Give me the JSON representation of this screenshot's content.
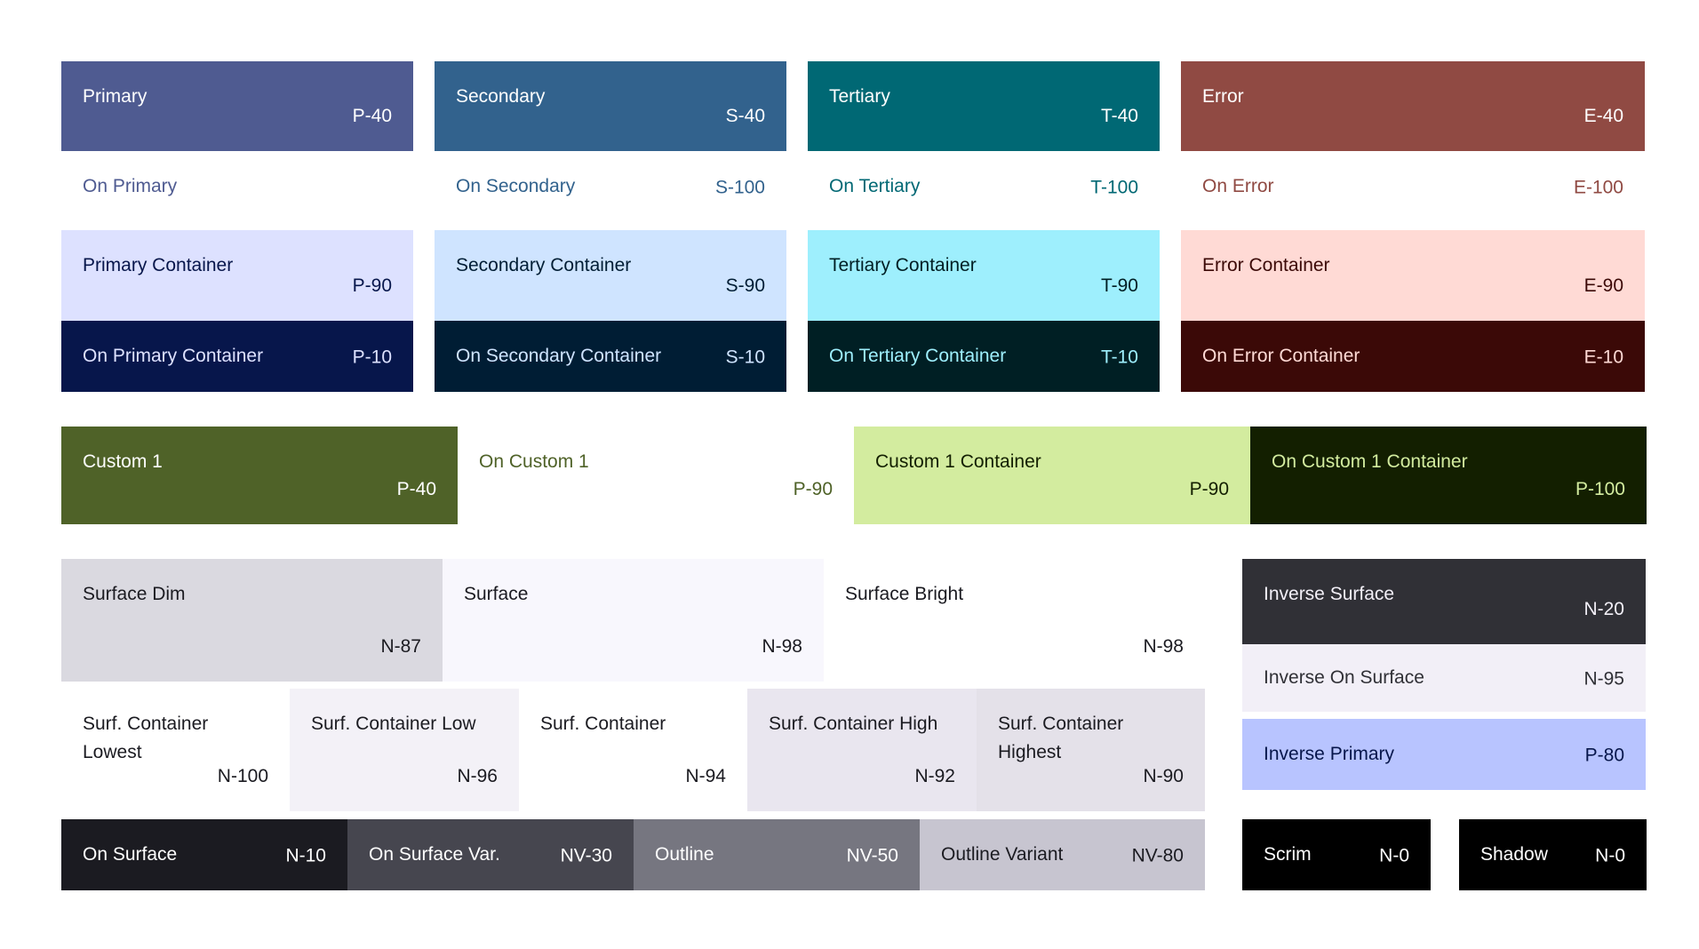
{
  "tiles": {
    "primary": {
      "name": "Primary",
      "code": "P-40",
      "bg": "#4F5B91",
      "fg": "#FFFFFF"
    },
    "secondary": {
      "name": "Secondary",
      "code": "S-40",
      "bg": "#32628D",
      "fg": "#FFFFFF"
    },
    "tertiary": {
      "name": "Tertiary",
      "code": "T-40",
      "bg": "#006874",
      "fg": "#FFFFFF"
    },
    "error": {
      "name": "Error",
      "code": "E-40",
      "bg": "#904A43",
      "fg": "#FFFFFF"
    },
    "on_primary": {
      "name": "On Primary",
      "code": "",
      "bg": "#FFFFFF",
      "fg": "#4F5B91"
    },
    "on_secondary": {
      "name": "On Secondary",
      "code": "S-100",
      "bg": "#FFFFFF",
      "fg": "#32628D"
    },
    "on_tertiary": {
      "name": "On Tertiary",
      "code": "T-100",
      "bg": "#FFFFFF",
      "fg": "#006874"
    },
    "on_error": {
      "name": "On Error",
      "code": "E-100",
      "bg": "#FFFFFF",
      "fg": "#904A43"
    },
    "primary_container": {
      "name": "Primary Container",
      "code": "P-90",
      "bg": "#DDE1FF",
      "fg": "#07164B"
    },
    "secondary_container": {
      "name": "Secondary Container",
      "code": "S-90",
      "bg": "#CFE4FF",
      "fg": "#001D34"
    },
    "tertiary_container": {
      "name": "Tertiary Container",
      "code": "T-90",
      "bg": "#9EEFFD",
      "fg": "#001F24"
    },
    "error_container": {
      "name": "Error Container",
      "code": "E-90",
      "bg": "#FFDAD5",
      "fg": "#3B0907"
    },
    "on_primary_container": {
      "name": "On Primary Container",
      "code": "P-10",
      "bg": "#07164B",
      "fg": "#DDE1FF"
    },
    "on_secondary_container": {
      "name": "On Secondary Container",
      "code": "S-10",
      "bg": "#001D34",
      "fg": "#CFE4FF"
    },
    "on_tertiary_container": {
      "name": "On Tertiary Container",
      "code": "T-10",
      "bg": "#001F24",
      "fg": "#9EEFFD"
    },
    "on_error_container": {
      "name": "On Error Container",
      "code": "E-10",
      "bg": "#3B0907",
      "fg": "#FFDAD5"
    },
    "custom1": {
      "name": "Custom 1",
      "code": "P-40",
      "bg": "#4F6228",
      "fg": "#FFFFFF"
    },
    "on_custom1": {
      "name": "On Custom 1",
      "code": "P-90",
      "bg": "#FFFFFF",
      "fg": "#4F6228"
    },
    "custom1_container": {
      "name": "Custom 1 Container",
      "code": "P-90",
      "bg": "#D3EC9F",
      "fg": "#131F00"
    },
    "on_custom1_container": {
      "name": "On Custom 1 Container",
      "code": "P-100",
      "bg": "#131F00",
      "fg": "#D3EC9F"
    },
    "surface_dim": {
      "name": "Surface Dim",
      "code": "N-87",
      "bg": "#DAD9E0",
      "fg": "#1B1B21"
    },
    "surface": {
      "name": "Surface",
      "code": "N-98",
      "bg": "#F8F7FD",
      "fg": "#1B1B21"
    },
    "surface_bright": {
      "name": "Surface Bright",
      "code": "N-98",
      "bg": "#FFFFFF",
      "fg": "#1B1B21"
    },
    "surf_container_lowest": {
      "name": "Surf. Container\nLowest",
      "code": "N-100",
      "bg": "#FFFFFF",
      "fg": "#1B1B21"
    },
    "surf_container_low": {
      "name": "Surf. Container Low",
      "code": "N-96",
      "bg": "#F3F1F7",
      "fg": "#1B1B21"
    },
    "surf_container": {
      "name": "Surf. Container",
      "code": "N-94",
      "bg": "#FFFFFF",
      "fg": "#1B1B21"
    },
    "surf_container_high": {
      "name": "Surf. Container High",
      "code": "N-92",
      "bg": "#E9E6EF",
      "fg": "#1B1B21"
    },
    "surf_container_highest": {
      "name": "Surf. Container\nHighest",
      "code": "N-90",
      "bg": "#E4E1E9",
      "fg": "#1B1B21"
    },
    "on_surface": {
      "name": "On Surface",
      "code": "N-10",
      "bg": "#1B1B21",
      "fg": "#FFFFFF"
    },
    "on_surface_var": {
      "name": "On Surface Var.",
      "code": "NV-30",
      "bg": "#46464F",
      "fg": "#FFFFFF"
    },
    "outline": {
      "name": "Outline",
      "code": "NV-50",
      "bg": "#767680",
      "fg": "#FFFFFF"
    },
    "outline_variant": {
      "name": "Outline Variant",
      "code": "NV-80",
      "bg": "#C7C5D0",
      "fg": "#1B1B21"
    },
    "inverse_surface": {
      "name": "Inverse Surface",
      "code": "N-20",
      "bg": "#303036",
      "fg": "#F2EFF7"
    },
    "inverse_on_surface": {
      "name": "Inverse On Surface",
      "code": "N-95",
      "bg": "#F2EFF7",
      "fg": "#303036"
    },
    "inverse_primary": {
      "name": "Inverse Primary",
      "code": "P-80",
      "bg": "#B8C4FF",
      "fg": "#07164B"
    },
    "scrim": {
      "name": "Scrim",
      "code": "N-0",
      "bg": "#000000",
      "fg": "#FFFFFF"
    },
    "shadow": {
      "name": "Shadow",
      "code": "N-0",
      "bg": "#000000",
      "fg": "#FFFFFF"
    }
  }
}
